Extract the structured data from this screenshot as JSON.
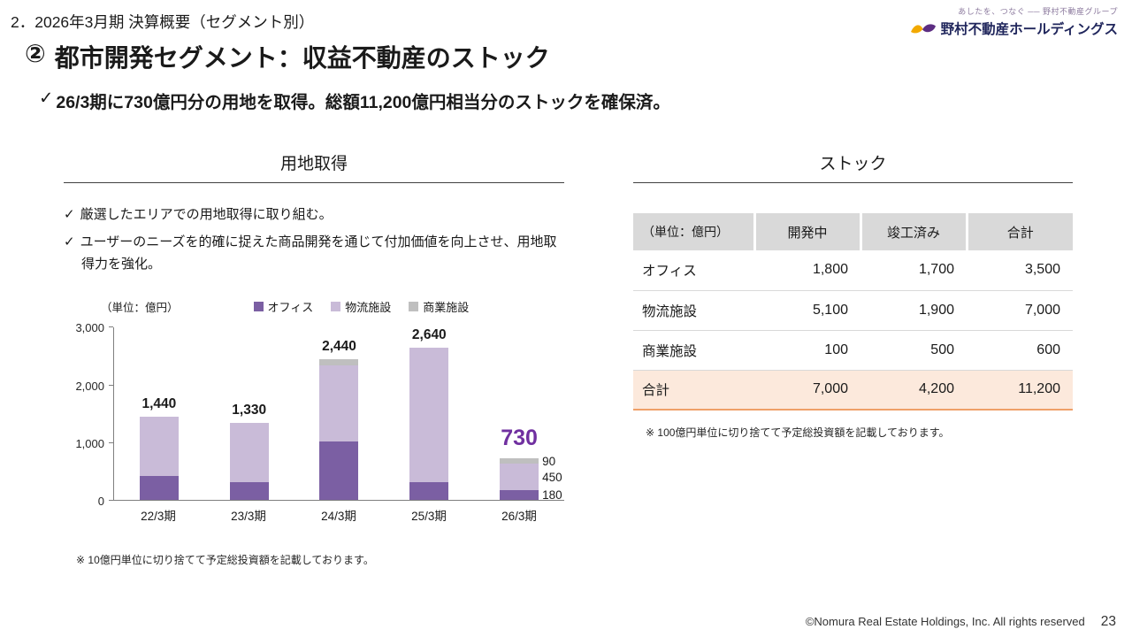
{
  "header": {
    "breadcrumb": "2．2026年3月期 決算概要（セグメント別）",
    "logo": {
      "tagline": "あしたを、つなぐ ── 野村不動産グループ",
      "company": "野村不動産ホールディングス"
    }
  },
  "title": {
    "number": "②",
    "text": "都市開発セグメント：収益不動産のストック"
  },
  "lead": {
    "check": "✓",
    "text": "26/3期に730億円分の用地を取得。総額11,200億円相当分のストックを確保済。"
  },
  "left_panel": {
    "section_title": "用地取得",
    "bullet_check": "✓",
    "bullets": [
      "厳選したエリアでの用地取得に取り組む。",
      "ユーザーのニーズを的確に捉えた商品開発を通じて付加価値を向上させ、用地取得力を強化。"
    ],
    "footnote": "※ 10億円単位に切り捨てて予定総投資額を記載しております。"
  },
  "chart_data": {
    "type": "bar",
    "subtype": "stacked",
    "title": "用地取得",
    "unit_label": "（単位：億円）",
    "categories": [
      "22/3期",
      "23/3期",
      "24/3期",
      "25/3期",
      "26/3期"
    ],
    "series": [
      {
        "name": "オフィス",
        "color": "#7B5FA3",
        "label_color": "#ffffff",
        "values": [
          410,
          310,
          1020,
          310,
          180
        ]
      },
      {
        "name": "物流施設",
        "color": "#C9BBD8",
        "label_color": "#1a1a1a",
        "values": [
          1030,
          1020,
          1310,
          2330,
          450
        ]
      },
      {
        "name": "商業施設",
        "color": "#BFBFBF",
        "label_color": "#1a1a1a",
        "values": [
          0,
          0,
          110,
          0,
          90
        ]
      }
    ],
    "totals": [
      "1,440",
      "1,330",
      "2,440",
      "2,640",
      "730"
    ],
    "ylim": [
      0,
      3000
    ],
    "yticks": [
      "0",
      "1,000",
      "2,000",
      "3,000"
    ],
    "grid": "off",
    "legend_position": "top",
    "highlight_category": "26/3期",
    "highlight_color": "#7030A0"
  },
  "right_panel": {
    "section_title": "ストック",
    "table": {
      "unit_header": "（単位：億円）",
      "columns": [
        "開発中",
        "竣工済み",
        "合計"
      ],
      "rows": [
        {
          "label": "オフィス",
          "values": [
            "1,800",
            "1,700",
            "3,500"
          ]
        },
        {
          "label": "物流施設",
          "values": [
            "5,100",
            "1,900",
            "7,000"
          ]
        },
        {
          "label": "商業施設",
          "values": [
            "100",
            "500",
            "600"
          ]
        }
      ],
      "total_row": {
        "label": "合計",
        "values": [
          "7,000",
          "4,200",
          "11,200"
        ]
      }
    },
    "footnote": "※ 100億円単位に切り捨てて予定総投資額を記載しております。"
  },
  "footer": {
    "copyright": "©Nomura Real Estate Holdings, Inc. All rights reserved",
    "page": "23"
  },
  "colors": {
    "office": "#7B5FA3",
    "logistics": "#C9BBD8",
    "commercial": "#BFBFBF",
    "accent_purple": "#7030A0",
    "table_header_bg": "#D9D9D9",
    "total_row_bg": "#FCE9DC",
    "table_accent_border": "#EFA068"
  }
}
